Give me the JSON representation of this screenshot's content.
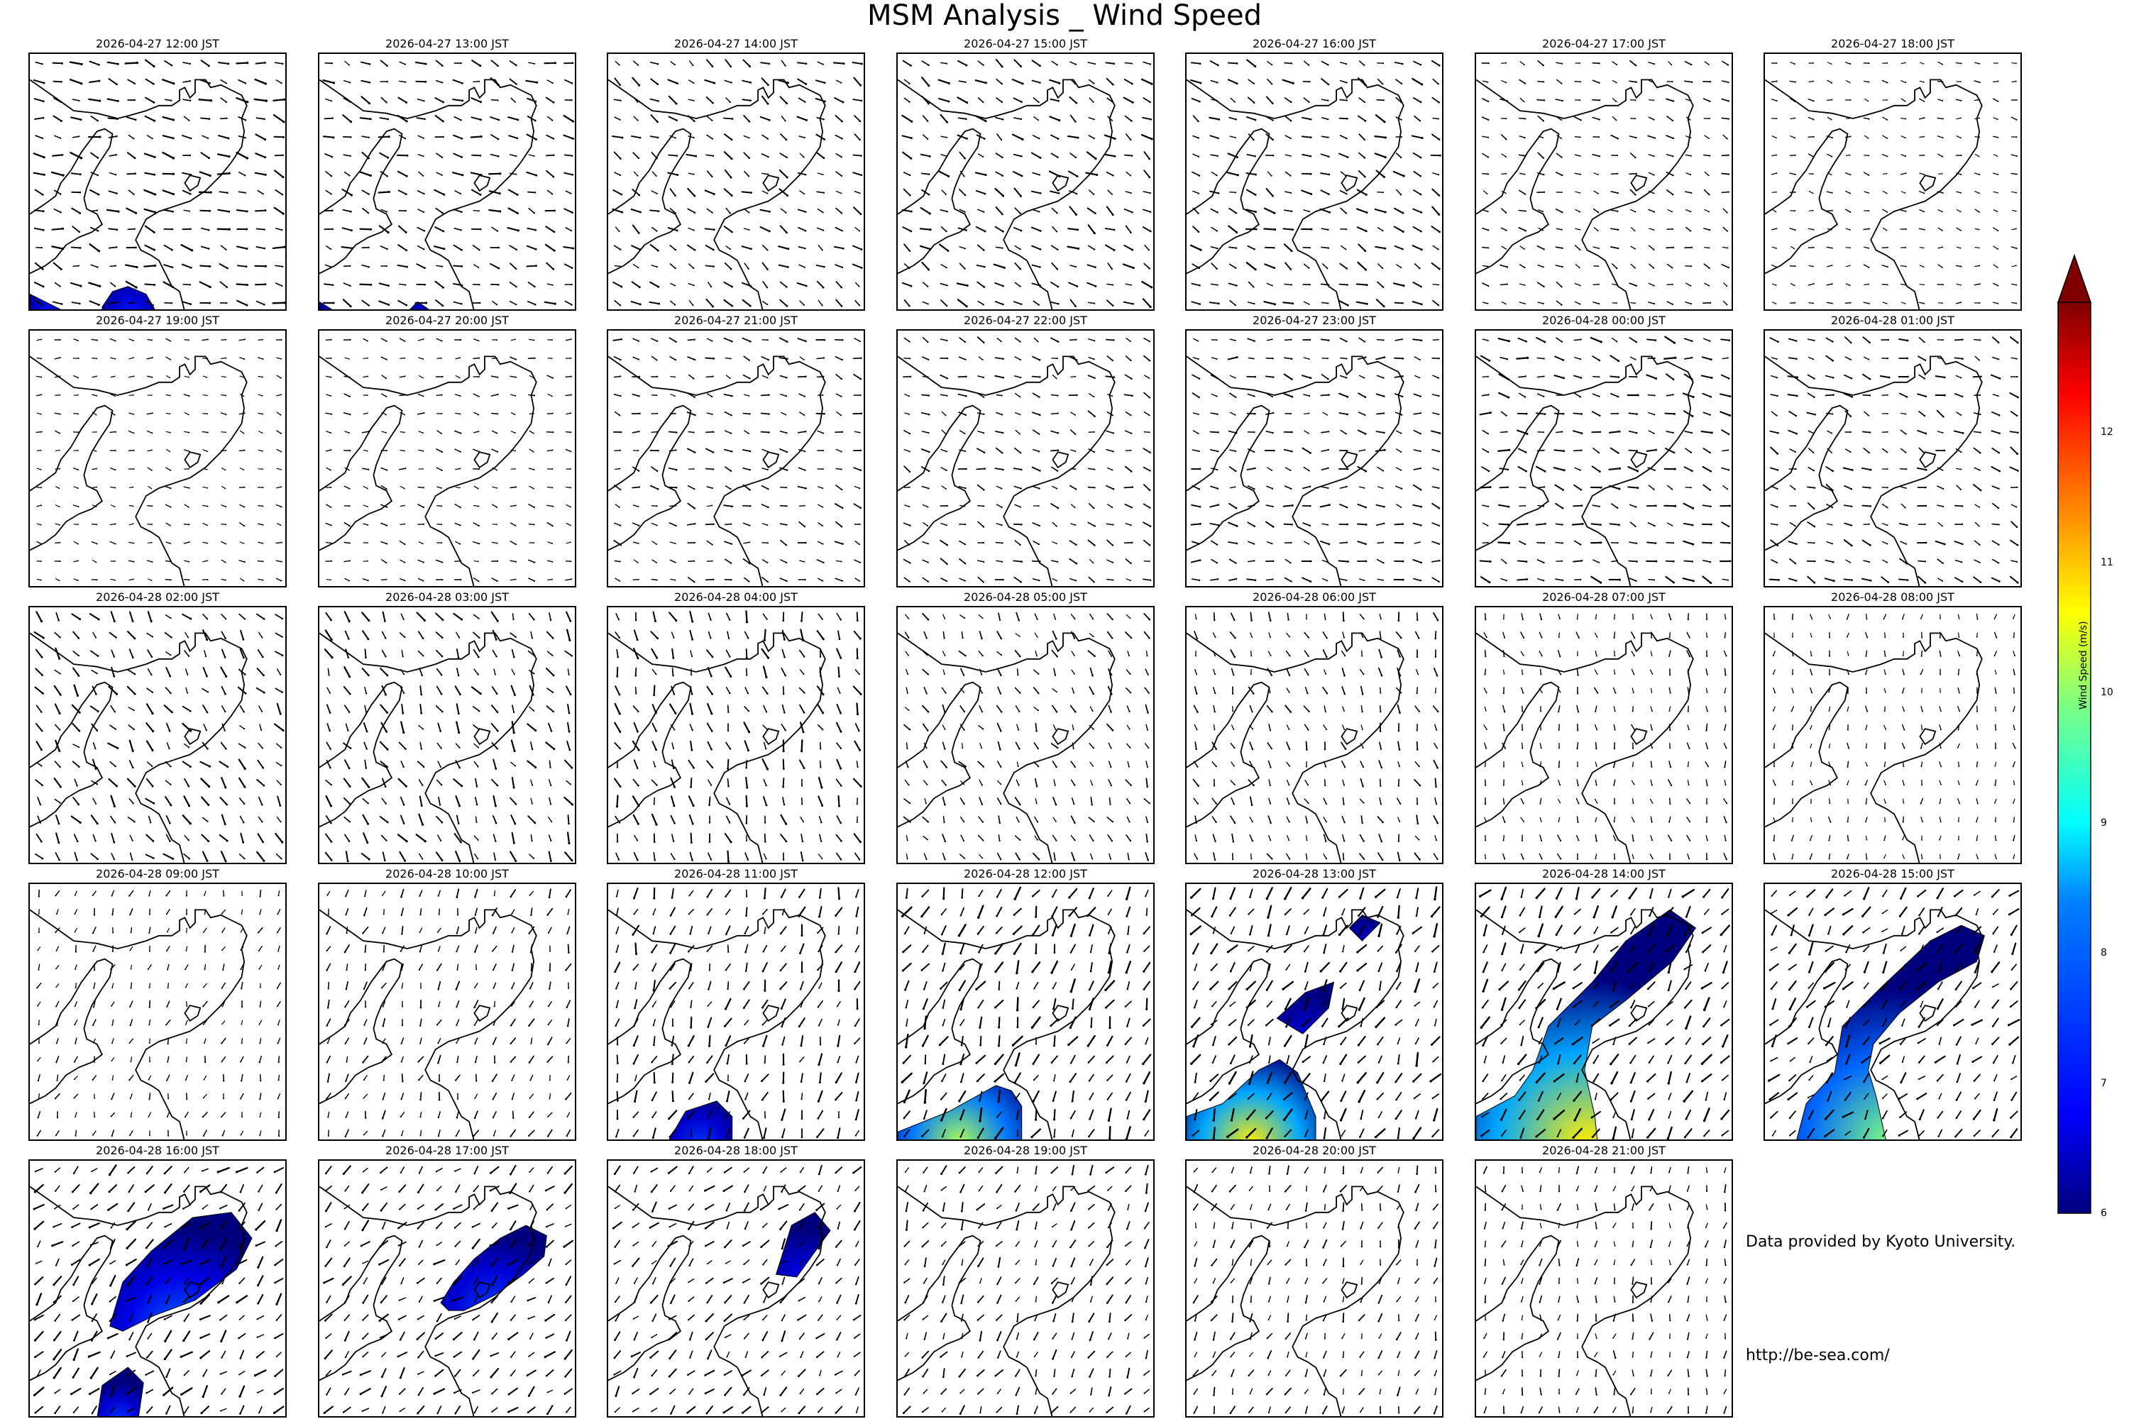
{
  "title": "MSM Analysis _ Wind Speed",
  "panels": [
    {
      "time": "2026-04-27 12:00 JST",
      "blobs": [
        {
          "pts": [
            [
              0,
              0.93
            ],
            [
              0.08,
              0.97
            ],
            [
              0.14,
              1
            ],
            [
              0,
              1
            ]
          ],
          "max": 7
        },
        {
          "pts": [
            [
              0.28,
              0.98
            ],
            [
              0.32,
              0.92
            ],
            [
              0.38,
              0.9
            ],
            [
              0.45,
              0.93
            ],
            [
              0.49,
              1
            ],
            [
              0.28,
              1
            ]
          ],
          "max": 7
        }
      ],
      "arrows": {
        "dir": 105,
        "mag": 0.5
      }
    },
    {
      "time": "2026-04-27 13:00 JST",
      "blobs": [
        {
          "pts": [
            [
              0,
              0.96
            ],
            [
              0.05,
              0.99
            ],
            [
              0.1,
              1
            ],
            [
              0,
              1
            ]
          ],
          "max": 6.6
        },
        {
          "pts": [
            [
              0.34,
              1
            ],
            [
              0.38,
              0.96
            ],
            [
              0.44,
              1
            ]
          ],
          "max": 6.6
        }
      ],
      "arrows": {
        "dir": 110,
        "mag": 0.45
      }
    },
    {
      "time": "2026-04-27 14:00 JST",
      "blobs": [],
      "arrows": {
        "dir": 120,
        "mag": 0.4
      }
    },
    {
      "time": "2026-04-27 15:00 JST",
      "blobs": [],
      "arrows": {
        "dir": 120,
        "mag": 0.45
      }
    },
    {
      "time": "2026-04-27 16:00 JST",
      "blobs": [],
      "arrows": {
        "dir": 115,
        "mag": 0.45
      }
    },
    {
      "time": "2026-04-27 17:00 JST",
      "blobs": [],
      "arrows": {
        "dir": 110,
        "mag": 0.25
      }
    },
    {
      "time": "2026-04-27 18:00 JST",
      "blobs": [],
      "arrows": {
        "dir": 100,
        "mag": 0.15
      }
    },
    {
      "time": "2026-04-27 19:00 JST",
      "blobs": [],
      "arrows": {
        "dir": 100,
        "mag": 0.15
      }
    },
    {
      "time": "2026-04-27 20:00 JST",
      "blobs": [],
      "arrows": {
        "dir": 100,
        "mag": 0.2
      }
    },
    {
      "time": "2026-04-27 21:00 JST",
      "blobs": [],
      "arrows": {
        "dir": 105,
        "mag": 0.3
      }
    },
    {
      "time": "2026-04-27 22:00 JST",
      "blobs": [],
      "arrows": {
        "dir": 110,
        "mag": 0.3
      }
    },
    {
      "time": "2026-04-27 23:00 JST",
      "blobs": [],
      "arrows": {
        "dir": 100,
        "mag": 0.35
      }
    },
    {
      "time": "2026-04-28 00:00 JST",
      "blobs": [],
      "arrows": {
        "dir": 105,
        "mag": 0.45
      }
    },
    {
      "time": "2026-04-28 01:00 JST",
      "blobs": [],
      "arrows": {
        "dir": 110,
        "mag": 0.35
      }
    },
    {
      "time": "2026-04-28 02:00 JST",
      "blobs": [],
      "arrows": {
        "dir": 140,
        "mag": 0.45
      }
    },
    {
      "time": "2026-04-28 03:00 JST",
      "blobs": [],
      "arrows": {
        "dir": 150,
        "mag": 0.45
      }
    },
    {
      "time": "2026-04-28 04:00 JST",
      "blobs": [],
      "arrows": {
        "dir": 160,
        "mag": 0.45
      }
    },
    {
      "time": "2026-04-28 05:00 JST",
      "blobs": [],
      "arrows": {
        "dir": 150,
        "mag": 0.3
      }
    },
    {
      "time": "2026-04-28 06:00 JST",
      "blobs": [],
      "arrows": {
        "dir": 160,
        "mag": 0.3
      }
    },
    {
      "time": "2026-04-28 07:00 JST",
      "blobs": [],
      "arrows": {
        "dir": 170,
        "mag": 0.2
      }
    },
    {
      "time": "2026-04-28 08:00 JST",
      "blobs": [],
      "arrows": {
        "dir": 180,
        "mag": 0.15
      }
    },
    {
      "time": "2026-04-28 09:00 JST",
      "blobs": [],
      "arrows": {
        "dir": 200,
        "mag": 0.2
      }
    },
    {
      "time": "2026-04-28 10:00 JST",
      "blobs": [],
      "arrows": {
        "dir": 200,
        "mag": 0.3
      }
    },
    {
      "time": "2026-04-28 11:00 JST",
      "blobs": [
        {
          "pts": [
            [
              0.23,
              1
            ],
            [
              0.3,
              0.88
            ],
            [
              0.42,
              0.84
            ],
            [
              0.48,
              0.9
            ],
            [
              0.48,
              1
            ]
          ],
          "max": 7.2
        }
      ],
      "arrows": {
        "dir": 200,
        "mag": 0.45
      }
    },
    {
      "time": "2026-04-28 12:00 JST",
      "blobs": [
        {
          "pts": [
            [
              0,
              0.96
            ],
            [
              0.2,
              0.88
            ],
            [
              0.38,
              0.78
            ],
            [
              0.44,
              0.8
            ],
            [
              0.48,
              0.86
            ],
            [
              0.48,
              1
            ],
            [
              0,
              1
            ]
          ],
          "max": 9.8
        }
      ],
      "arrows": {
        "dir": 205,
        "mag": 0.55
      }
    },
    {
      "time": "2026-04-28 13:00 JST",
      "blobs": [
        {
          "pts": [
            [
              0,
              0.9
            ],
            [
              0.14,
              0.85
            ],
            [
              0.28,
              0.72
            ],
            [
              0.36,
              0.68
            ],
            [
              0.43,
              0.73
            ],
            [
              0.5,
              0.9
            ],
            [
              0.5,
              1
            ],
            [
              0,
              1
            ]
          ],
          "max": 10.5
        },
        {
          "pts": [
            [
              0.35,
              0.52
            ],
            [
              0.46,
              0.42
            ],
            [
              0.57,
              0.38
            ],
            [
              0.55,
              0.48
            ],
            [
              0.45,
              0.58
            ]
          ],
          "max": 6.6
        },
        {
          "pts": [
            [
              0.63,
              0.17
            ],
            [
              0.68,
              0.12
            ],
            [
              0.75,
              0.15
            ],
            [
              0.68,
              0.22
            ]
          ],
          "max": 6.6
        }
      ],
      "arrows": {
        "dir": 210,
        "mag": 0.55
      }
    },
    {
      "time": "2026-04-28 14:00 JST",
      "blobs": [
        {
          "pts": [
            [
              0,
              0.9
            ],
            [
              0.15,
              0.82
            ],
            [
              0.22,
              0.72
            ],
            [
              0.28,
              0.55
            ],
            [
              0.45,
              0.38
            ],
            [
              0.58,
              0.22
            ],
            [
              0.75,
              0.1
            ],
            [
              0.85,
              0.17
            ],
            [
              0.76,
              0.3
            ],
            [
              0.58,
              0.45
            ],
            [
              0.45,
              0.55
            ],
            [
              0.42,
              0.72
            ],
            [
              0.46,
              0.9
            ],
            [
              0.47,
              1
            ],
            [
              0,
              1
            ]
          ],
          "max": 10.5
        }
      ],
      "arrows": {
        "dir": 215,
        "mag": 0.55
      }
    },
    {
      "time": "2026-04-28 15:00 JST",
      "blobs": [
        {
          "pts": [
            [
              0.12,
              1
            ],
            [
              0.16,
              0.85
            ],
            [
              0.27,
              0.73
            ],
            [
              0.3,
              0.55
            ],
            [
              0.45,
              0.4
            ],
            [
              0.64,
              0.22
            ],
            [
              0.76,
              0.16
            ],
            [
              0.85,
              0.2
            ],
            [
              0.82,
              0.3
            ],
            [
              0.67,
              0.38
            ],
            [
              0.52,
              0.5
            ],
            [
              0.42,
              0.62
            ],
            [
              0.4,
              0.72
            ],
            [
              0.43,
              0.82
            ],
            [
              0.47,
              1
            ]
          ],
          "max": 9.5
        }
      ],
      "arrows": {
        "dir": 220,
        "mag": 0.5
      }
    },
    {
      "time": "2026-04-28 16:00 JST",
      "blobs": [
        {
          "pts": [
            [
              0.31,
              0.64
            ],
            [
              0.36,
              0.47
            ],
            [
              0.47,
              0.35
            ],
            [
              0.63,
              0.22
            ],
            [
              0.78,
              0.2
            ],
            [
              0.86,
              0.3
            ],
            [
              0.8,
              0.42
            ],
            [
              0.64,
              0.54
            ],
            [
              0.48,
              0.6
            ],
            [
              0.36,
              0.66
            ]
          ],
          "max": 7.6
        },
        {
          "pts": [
            [
              0.26,
              1
            ],
            [
              0.28,
              0.87
            ],
            [
              0.38,
              0.8
            ],
            [
              0.44,
              0.86
            ],
            [
              0.42,
              1
            ]
          ],
          "max": 7.2
        }
      ],
      "arrows": {
        "dir": 225,
        "mag": 0.5
      }
    },
    {
      "time": "2026-04-28 17:00 JST",
      "blobs": [
        {
          "pts": [
            [
              0.47,
              0.55
            ],
            [
              0.52,
              0.47
            ],
            [
              0.6,
              0.38
            ],
            [
              0.7,
              0.3
            ],
            [
              0.8,
              0.25
            ],
            [
              0.88,
              0.29
            ],
            [
              0.87,
              0.37
            ],
            [
              0.79,
              0.44
            ],
            [
              0.68,
              0.52
            ],
            [
              0.56,
              0.58
            ],
            [
              0.5,
              0.58
            ]
          ],
          "max": 7.3
        }
      ],
      "arrows": {
        "dir": 225,
        "mag": 0.45
      }
    },
    {
      "time": "2026-04-28 18:00 JST",
      "blobs": [
        {
          "pts": [
            [
              0.65,
              0.44
            ],
            [
              0.71,
              0.25
            ],
            [
              0.8,
              0.2
            ],
            [
              0.86,
              0.27
            ],
            [
              0.73,
              0.45
            ]
          ],
          "max": 6.8
        }
      ],
      "arrows": {
        "dir": 220,
        "mag": 0.4
      }
    },
    {
      "time": "2026-04-28 19:00 JST",
      "blobs": [],
      "arrows": {
        "dir": 210,
        "mag": 0.35
      }
    },
    {
      "time": "2026-04-28 20:00 JST",
      "blobs": [],
      "arrows": {
        "dir": 200,
        "mag": 0.3
      }
    },
    {
      "time": "2026-04-28 21:00 JST",
      "blobs": [],
      "arrows": {
        "dir": 190,
        "mag": 0.25
      }
    }
  ],
  "colorbar": {
    "label": "Wind Speed (m/s)",
    "min": 6,
    "max": 13,
    "ticks": [
      "6",
      "7",
      "8",
      "9",
      "10",
      "11",
      "12"
    ],
    "extend": "max",
    "colormap": [
      "#00007f",
      "#0000ff",
      "#007fff",
      "#00ffff",
      "#7fff7f",
      "#ffff00",
      "#ff7f00",
      "#ff0000",
      "#7f0000"
    ]
  },
  "credits": {
    "line1": "Data provided by Kyoto University.",
    "line2": "http://be-sea.com/"
  }
}
